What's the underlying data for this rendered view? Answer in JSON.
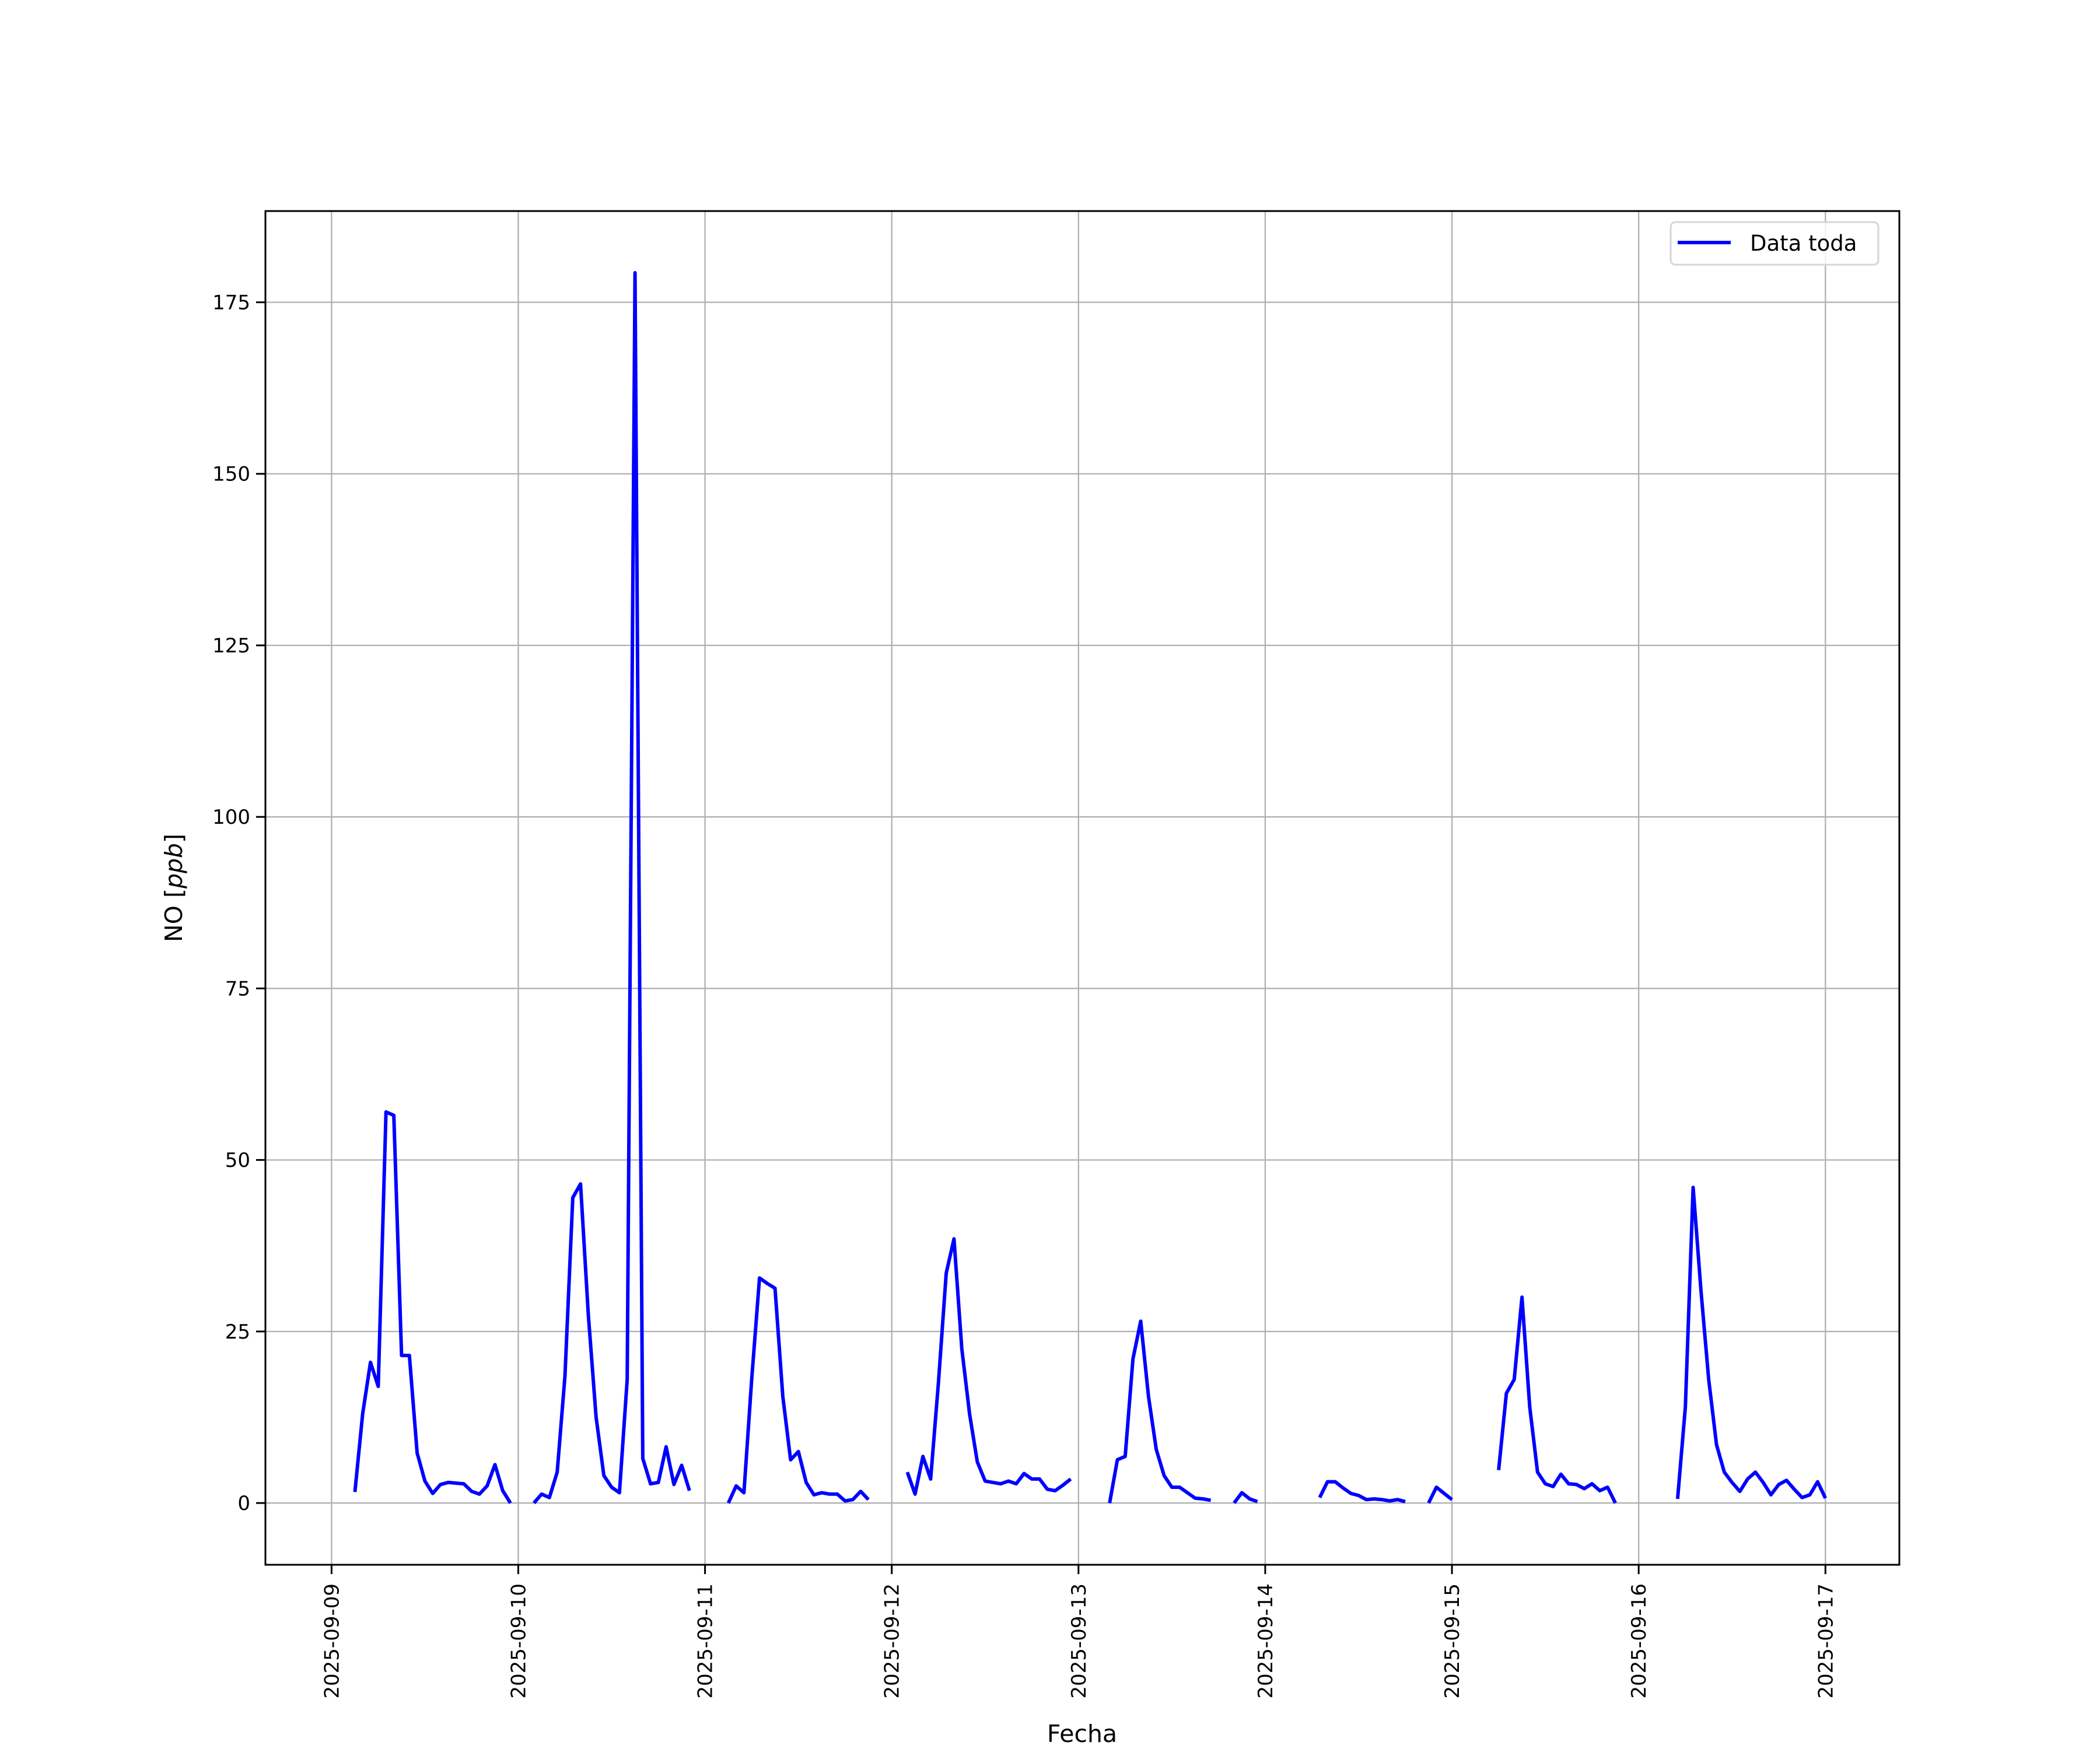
{
  "chart_data": {
    "type": "line",
    "title": "",
    "xlabel": "Fecha",
    "ylabel": "NO [ppb]",
    "ylabel_main": "NO [",
    "ylabel_unit": "ppb",
    "ylabel_end": "]",
    "xlim": [
      "2025-09-08 15:30",
      "2025-09-17 09:30"
    ],
    "ylim": [
      -9,
      188.3
    ],
    "grid": true,
    "legend_position": "top-right",
    "x_ticks": [
      "2025-09-09",
      "2025-09-10",
      "2025-09-11",
      "2025-09-12",
      "2025-09-13",
      "2025-09-14",
      "2025-09-15",
      "2025-09-16",
      "2025-09-17"
    ],
    "y_ticks": [
      0,
      25,
      50,
      75,
      100,
      125,
      150,
      175
    ],
    "series": [
      {
        "name": "Data toda",
        "color": "#0000ff",
        "points": [
          [
            "2025-09-09 03:00",
            1.6
          ],
          [
            "2025-09-09 04:00",
            13
          ],
          [
            "2025-09-09 05:00",
            20.5
          ],
          [
            "2025-09-09 06:00",
            17
          ],
          [
            "2025-09-09 07:00",
            57
          ],
          [
            "2025-09-09 08:00",
            56.5
          ],
          [
            "2025-09-09 09:00",
            21.5
          ],
          [
            "2025-09-09 10:00",
            21.5
          ],
          [
            "2025-09-09 11:00",
            7.3
          ],
          [
            "2025-09-09 12:00",
            3.2
          ],
          [
            "2025-09-09 13:00",
            1.4
          ],
          [
            "2025-09-09 14:00",
            2.7
          ],
          [
            "2025-09-09 15:00",
            3
          ],
          [
            "2025-09-09 16:00",
            2.9
          ],
          [
            "2025-09-09 17:00",
            2.8
          ],
          [
            "2025-09-09 18:00",
            1.7
          ],
          [
            "2025-09-09 19:00",
            1.3
          ],
          [
            "2025-09-09 20:00",
            2.5
          ],
          [
            "2025-09-09 21:00",
            5.6
          ],
          [
            "2025-09-09 22:00",
            1.8
          ],
          [
            "2025-09-09 23:00",
            0
          ],
          [
            "2025-09-10 02:00",
            0
          ],
          [
            "2025-09-10 03:00",
            1.3
          ],
          [
            "2025-09-10 04:00",
            0.8
          ],
          [
            "2025-09-10 05:00",
            4.5
          ],
          [
            "2025-09-10 06:00",
            18.5
          ],
          [
            "2025-09-10 07:00",
            44.5
          ],
          [
            "2025-09-10 08:00",
            46.5
          ],
          [
            "2025-09-10 09:00",
            27.5
          ],
          [
            "2025-09-10 10:00",
            12.5
          ],
          [
            "2025-09-10 11:00",
            4
          ],
          [
            "2025-09-10 12:00",
            2.3
          ],
          [
            "2025-09-10 13:00",
            1.5
          ],
          [
            "2025-09-10 14:00",
            18
          ],
          [
            "2025-09-10 15:00",
            179.3
          ],
          [
            "2025-09-10 16:00",
            6.5
          ],
          [
            "2025-09-10 17:00",
            2.8
          ],
          [
            "2025-09-10 18:00",
            3
          ],
          [
            "2025-09-10 19:00",
            8.2
          ],
          [
            "2025-09-10 20:00",
            2.7
          ],
          [
            "2025-09-10 21:00",
            5.5
          ],
          [
            "2025-09-10 22:00",
            1.8
          ],
          [
            "2025-09-11 03:00",
            0
          ],
          [
            "2025-09-11 04:00",
            2.5
          ],
          [
            "2025-09-11 05:00",
            1.5
          ],
          [
            "2025-09-11 06:00",
            18
          ],
          [
            "2025-09-11 07:00",
            32.8
          ],
          [
            "2025-09-11 08:00",
            32
          ],
          [
            "2025-09-11 09:00",
            31.3
          ],
          [
            "2025-09-11 10:00",
            15.5
          ],
          [
            "2025-09-11 11:00",
            6.3
          ],
          [
            "2025-09-11 12:00",
            7.5
          ],
          [
            "2025-09-11 13:00",
            3
          ],
          [
            "2025-09-11 14:00",
            1.2
          ],
          [
            "2025-09-11 15:00",
            1.5
          ],
          [
            "2025-09-11 16:00",
            1.3
          ],
          [
            "2025-09-11 17:00",
            1.3
          ],
          [
            "2025-09-11 18:00",
            0.3
          ],
          [
            "2025-09-11 19:00",
            0.5
          ],
          [
            "2025-09-11 20:00",
            1.7
          ],
          [
            "2025-09-11 21:00",
            0.5
          ],
          [
            "2025-09-12 02:00",
            4.5
          ],
          [
            "2025-09-12 03:00",
            1.3
          ],
          [
            "2025-09-12 04:00",
            6.8
          ],
          [
            "2025-09-12 05:00",
            3.5
          ],
          [
            "2025-09-12 06:00",
            17.5
          ],
          [
            "2025-09-12 07:00",
            33.5
          ],
          [
            "2025-09-12 08:00",
            38.5
          ],
          [
            "2025-09-12 09:00",
            22.5
          ],
          [
            "2025-09-12 10:00",
            13
          ],
          [
            "2025-09-12 11:00",
            6
          ],
          [
            "2025-09-12 12:00",
            3.2
          ],
          [
            "2025-09-12 13:00",
            3
          ],
          [
            "2025-09-12 14:00",
            2.8
          ],
          [
            "2025-09-12 15:00",
            3.2
          ],
          [
            "2025-09-12 16:00",
            2.8
          ],
          [
            "2025-09-12 17:00",
            4.3
          ],
          [
            "2025-09-12 18:00",
            3.5
          ],
          [
            "2025-09-12 19:00",
            3.5
          ],
          [
            "2025-09-12 20:00",
            2
          ],
          [
            "2025-09-12 21:00",
            1.8
          ],
          [
            "2025-09-12 22:00",
            2.6
          ],
          [
            "2025-09-12 23:00",
            3.5
          ],
          [
            "2025-09-13 04:00",
            0
          ],
          [
            "2025-09-13 05:00",
            6.3
          ],
          [
            "2025-09-13 06:00",
            6.8
          ],
          [
            "2025-09-13 07:00",
            21
          ],
          [
            "2025-09-13 08:00",
            26.5
          ],
          [
            "2025-09-13 09:00",
            15.5
          ],
          [
            "2025-09-13 10:00",
            7.8
          ],
          [
            "2025-09-13 11:00",
            4
          ],
          [
            "2025-09-13 12:00",
            2.3
          ],
          [
            "2025-09-13 13:00",
            2.3
          ],
          [
            "2025-09-13 14:00",
            1.5
          ],
          [
            "2025-09-13 15:00",
            0.7
          ],
          [
            "2025-09-13 16:00",
            0.6
          ],
          [
            "2025-09-13 17:00",
            0.4
          ],
          [
            "2025-09-13 20:00",
            0
          ],
          [
            "2025-09-13 21:00",
            1.5
          ],
          [
            "2025-09-13 22:00",
            0.6
          ],
          [
            "2025-09-13 23:00",
            0.2
          ],
          [
            "2025-09-14 07:00",
            0.8
          ],
          [
            "2025-09-14 08:00",
            3.1
          ],
          [
            "2025-09-14 09:00",
            3.1
          ],
          [
            "2025-09-14 10:00",
            2.2
          ],
          [
            "2025-09-14 11:00",
            1.4
          ],
          [
            "2025-09-14 12:00",
            1.1
          ],
          [
            "2025-09-14 13:00",
            0.5
          ],
          [
            "2025-09-14 14:00",
            0.6
          ],
          [
            "2025-09-14 15:00",
            0.5
          ],
          [
            "2025-09-14 16:00",
            0.3
          ],
          [
            "2025-09-14 17:00",
            0.5
          ],
          [
            "2025-09-14 18:00",
            0.2
          ],
          [
            "2025-09-14 21:00",
            0
          ],
          [
            "2025-09-14 22:00",
            2.3
          ],
          [
            "2025-09-14 23:00",
            1.4
          ],
          [
            "2025-09-15 00:00",
            0.5
          ],
          [
            "2025-09-15 06:00",
            4.8
          ],
          [
            "2025-09-15 07:00",
            16
          ],
          [
            "2025-09-15 08:00",
            18
          ],
          [
            "2025-09-15 09:00",
            30
          ],
          [
            "2025-09-15 10:00",
            14
          ],
          [
            "2025-09-15 11:00",
            4.5
          ],
          [
            "2025-09-15 12:00",
            2.8
          ],
          [
            "2025-09-15 13:00",
            2.4
          ],
          [
            "2025-09-15 14:00",
            4.2
          ],
          [
            "2025-09-15 15:00",
            2.8
          ],
          [
            "2025-09-15 16:00",
            2.7
          ],
          [
            "2025-09-15 17:00",
            2.1
          ],
          [
            "2025-09-15 18:00",
            2.8
          ],
          [
            "2025-09-15 19:00",
            1.8
          ],
          [
            "2025-09-15 20:00",
            2.3
          ],
          [
            "2025-09-15 21:00",
            0
          ],
          [
            "2025-09-16 05:00",
            0.6
          ],
          [
            "2025-09-16 06:00",
            14
          ],
          [
            "2025-09-16 07:00",
            46
          ],
          [
            "2025-09-16 08:00",
            31
          ],
          [
            "2025-09-16 09:00",
            18
          ],
          [
            "2025-09-16 10:00",
            8.5
          ],
          [
            "2025-09-16 11:00",
            4.5
          ],
          [
            "2025-09-16 12:00",
            3
          ],
          [
            "2025-09-16 13:00",
            1.7
          ],
          [
            "2025-09-16 14:00",
            3.5
          ],
          [
            "2025-09-16 15:00",
            4.5
          ],
          [
            "2025-09-16 16:00",
            3
          ],
          [
            "2025-09-16 17:00",
            1.2
          ],
          [
            "2025-09-16 18:00",
            2.7
          ],
          [
            "2025-09-16 19:00",
            3.3
          ],
          [
            "2025-09-16 20:00",
            2
          ],
          [
            "2025-09-16 21:00",
            0.8
          ],
          [
            "2025-09-16 22:00",
            1.2
          ],
          [
            "2025-09-16 23:00",
            3.1
          ],
          [
            "2025-09-17 00:00",
            0.7
          ]
        ]
      }
    ]
  }
}
